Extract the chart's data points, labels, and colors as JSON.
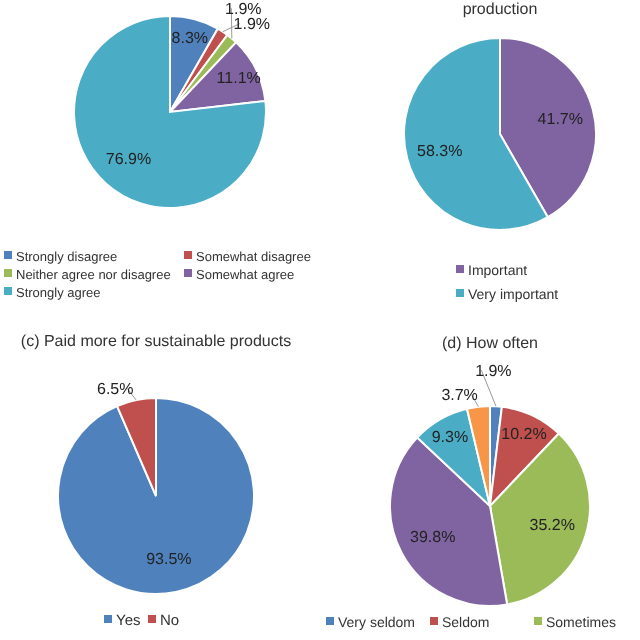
{
  "chart_data": [
    {
      "type": "pie",
      "categories": [
        "Strongly disagree",
        "Somewhat disagree",
        "Neither agree nor disagree",
        "Somewhat agree",
        "Strongly agree"
      ],
      "values": [
        8.3,
        1.9,
        1.9,
        11.1,
        76.9
      ],
      "value_labels": [
        "8.3%",
        "1.9%",
        "1.9%",
        "11.1%",
        "76.9%"
      ],
      "colors": [
        "#4f81bd",
        "#c0504d",
        "#9bbb59",
        "#8064a2",
        "#4bacc6"
      ],
      "legend": "bottom"
    },
    {
      "type": "pie",
      "title": "production",
      "categories": [
        "Important",
        "Very important"
      ],
      "values": [
        41.7,
        58.3
      ],
      "value_labels": [
        "41.7%",
        "58.3%"
      ],
      "colors": [
        "#8064a2",
        "#4bacc6"
      ],
      "legend": "bottom"
    },
    {
      "type": "pie",
      "title": "(c) Paid more for sustainable products",
      "categories": [
        "Yes",
        "No"
      ],
      "values": [
        93.5,
        6.5
      ],
      "value_labels": [
        "93.5%",
        "6.5%"
      ],
      "colors": [
        "#4f81bd",
        "#c0504d"
      ],
      "legend": "bottom"
    },
    {
      "type": "pie",
      "title": "(d) How often",
      "categories": [
        "Very seldom",
        "Seldom",
        "Sometimes",
        null,
        null,
        null
      ],
      "values": [
        1.9,
        10.2,
        35.2,
        39.8,
        9.3,
        3.7
      ],
      "value_labels": [
        "1.9%",
        "10.2%",
        "35.2%",
        "39.8%",
        "9.3%",
        "3.7%"
      ],
      "colors": [
        "#4f81bd",
        "#c0504d",
        "#9bbb59",
        "#8064a2",
        "#4bacc6",
        "#f79646"
      ],
      "legend": "bottom"
    }
  ]
}
